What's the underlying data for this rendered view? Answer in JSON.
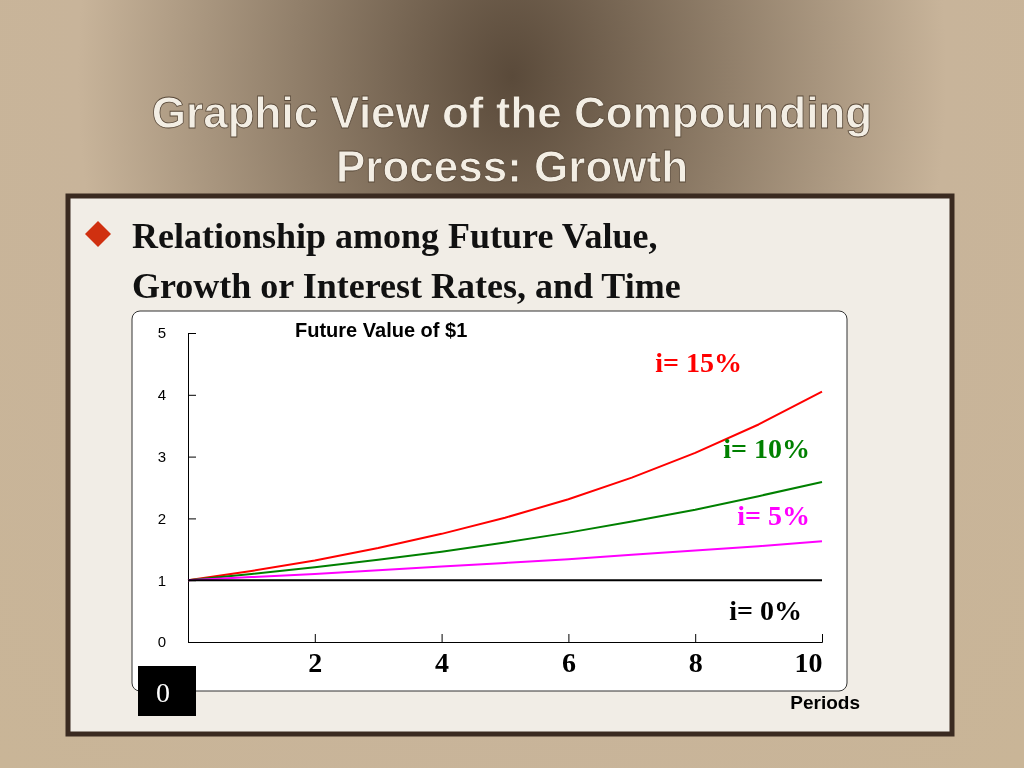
{
  "chart_data": {
    "type": "line",
    "title": "Graphic View of the Compounding Process:  Growth",
    "subtitle": "Relationship among Future Value, Growth or Interest Rates, and Time",
    "annotations": [
      "Future Value of $1",
      "0"
    ],
    "xlabel": "Periods",
    "x": [
      0,
      1,
      2,
      3,
      4,
      5,
      6,
      7,
      8,
      9,
      10
    ],
    "xlim": [
      0,
      10
    ],
    "xticks": [
      2,
      4,
      6,
      8,
      10
    ],
    "ylim": [
      0,
      5
    ],
    "yticks": [
      0,
      1,
      2,
      3,
      4,
      5
    ],
    "grid": false,
    "marker": "none",
    "line_style": "solid",
    "legend": false,
    "series": [
      {
        "name": "i= 15%",
        "color": "#ff0000",
        "values": [
          1,
          1.15,
          1.32,
          1.52,
          1.75,
          2.01,
          2.31,
          2.66,
          3.06,
          3.52,
          4.05
        ]
      },
      {
        "name": "i= 10%",
        "color": "#008000",
        "values": [
          1,
          1.1,
          1.21,
          1.33,
          1.46,
          1.61,
          1.77,
          1.95,
          2.14,
          2.36,
          2.59
        ]
      },
      {
        "name": "i= 5%",
        "color": "#ff00ff",
        "values": [
          1,
          1.05,
          1.1,
          1.16,
          1.22,
          1.28,
          1.34,
          1.41,
          1.48,
          1.55,
          1.63
        ]
      },
      {
        "name": "i= 0%",
        "color": "#000000",
        "values": [
          1,
          1,
          1,
          1,
          1,
          1,
          1,
          1,
          1,
          1,
          1
        ]
      }
    ]
  }
}
